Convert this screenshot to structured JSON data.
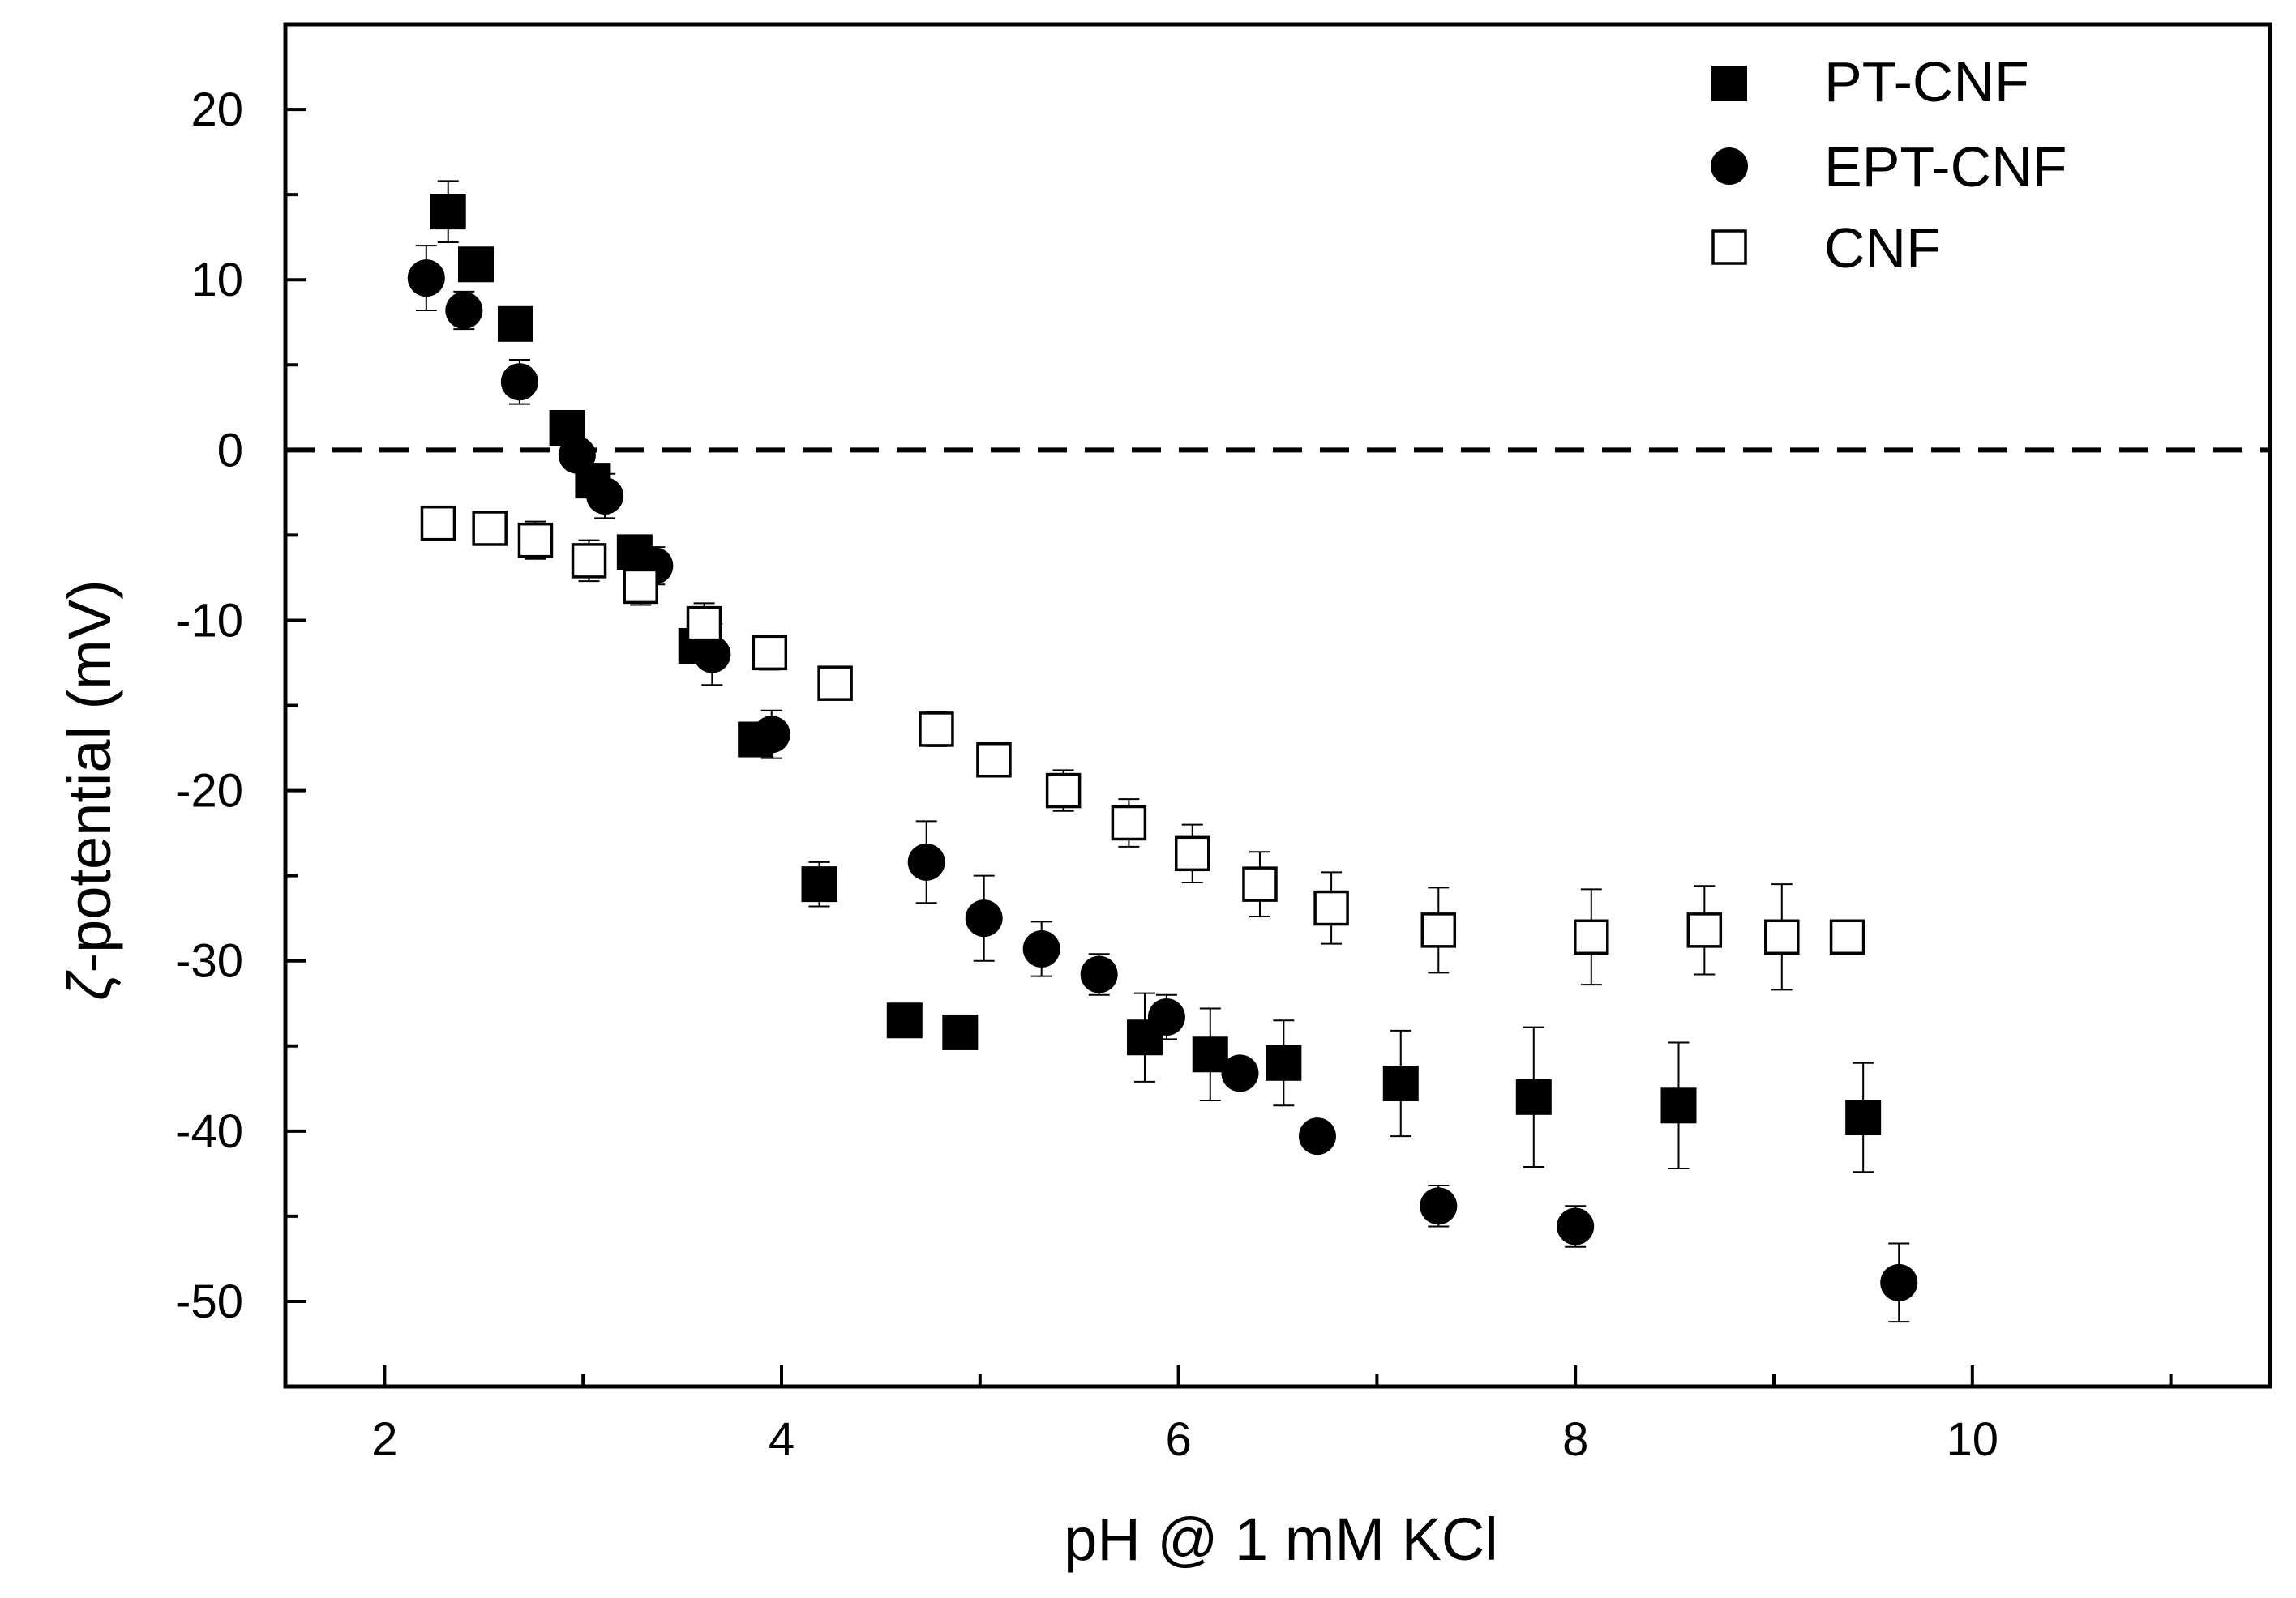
{
  "chart_data": {
    "type": "scatter",
    "title": "",
    "xlabel": "pH @ 1 mM KCl",
    "ylabel_symbol": "ζ",
    "ylabel": "-potential (mV)",
    "xlim": [
      1.5,
      11.5
    ],
    "ylim": [
      -55,
      25
    ],
    "xticks": [
      2,
      4,
      6,
      8,
      10
    ],
    "xtick_labels": [
      "2",
      "4",
      "6",
      "8",
      "10"
    ],
    "yticks": [
      20,
      10,
      0,
      -10,
      -20,
      -30,
      -40,
      -50
    ],
    "ytick_labels": [
      "20",
      "10",
      "0",
      "-10",
      "-20",
      "-30",
      "-40",
      "-50"
    ],
    "reference_line": {
      "y": 0,
      "style": "dashed"
    },
    "legend_position": "top-right",
    "series": [
      {
        "name": "PT-CNF",
        "marker": "filled-square",
        "points": [
          {
            "x": 2.32,
            "y": 14.0,
            "err": 1.8
          },
          {
            "x": 2.46,
            "y": 10.9,
            "err": 0.8
          },
          {
            "x": 2.66,
            "y": 7.4,
            "err": 0.8
          },
          {
            "x": 2.92,
            "y": 1.3,
            "err": 0.8
          },
          {
            "x": 3.05,
            "y": -1.8,
            "err": 0.8
          },
          {
            "x": 3.26,
            "y": -6.0,
            "err": 0.8
          },
          {
            "x": 3.57,
            "y": -11.5,
            "err": 1.0
          },
          {
            "x": 3.87,
            "y": -17.0,
            "err": 0.9
          },
          {
            "x": 4.19,
            "y": -25.5,
            "err": 1.3
          },
          {
            "x": 4.62,
            "y": -33.5,
            "err": 0.8
          },
          {
            "x": 4.9,
            "y": -34.2,
            "err": 0.8
          },
          {
            "x": 5.83,
            "y": -34.5,
            "err": 2.6
          },
          {
            "x": 6.16,
            "y": -35.5,
            "err": 2.7
          },
          {
            "x": 6.53,
            "y": -36.0,
            "err": 2.5
          },
          {
            "x": 7.12,
            "y": -37.2,
            "err": 3.1
          },
          {
            "x": 7.79,
            "y": -38.0,
            "err": 4.1
          },
          {
            "x": 8.52,
            "y": -38.5,
            "err": 3.7
          },
          {
            "x": 9.45,
            "y": -39.2,
            "err": 3.2
          }
        ]
      },
      {
        "name": "EPT-CNF",
        "marker": "filled-circle",
        "points": [
          {
            "x": 2.21,
            "y": 10.1,
            "err": 1.9
          },
          {
            "x": 2.4,
            "y": 8.2,
            "err": 1.1
          },
          {
            "x": 2.68,
            "y": 4.0,
            "err": 1.3
          },
          {
            "x": 2.97,
            "y": -0.3,
            "err": 0.9
          },
          {
            "x": 3.11,
            "y": -2.7,
            "err": 1.3
          },
          {
            "x": 3.36,
            "y": -6.8,
            "err": 1.1
          },
          {
            "x": 3.65,
            "y": -12.0,
            "err": 1.8
          },
          {
            "x": 3.95,
            "y": -16.7,
            "err": 1.4
          },
          {
            "x": 4.73,
            "y": -24.2,
            "err": 2.4
          },
          {
            "x": 5.02,
            "y": -27.5,
            "err": 2.5
          },
          {
            "x": 5.31,
            "y": -29.3,
            "err": 1.6
          },
          {
            "x": 5.6,
            "y": -30.8,
            "err": 1.2
          },
          {
            "x": 5.94,
            "y": -33.3,
            "err": 1.3
          },
          {
            "x": 6.31,
            "y": -36.6,
            "err": 0.8
          },
          {
            "x": 6.7,
            "y": -40.3,
            "err": 0.8
          },
          {
            "x": 7.31,
            "y": -44.4,
            "err": 1.2
          },
          {
            "x": 8.0,
            "y": -45.6,
            "err": 1.2
          },
          {
            "x": 9.63,
            "y": -48.9,
            "err": 2.3
          }
        ]
      },
      {
        "name": "CNF",
        "marker": "open-square",
        "points": [
          {
            "x": 2.27,
            "y": -4.3,
            "err": 0.9
          },
          {
            "x": 2.53,
            "y": -4.6,
            "err": 0.8
          },
          {
            "x": 2.76,
            "y": -5.3,
            "err": 1.1
          },
          {
            "x": 3.03,
            "y": -6.5,
            "err": 1.2
          },
          {
            "x": 3.29,
            "y": -8.0,
            "err": 1.1
          },
          {
            "x": 3.61,
            "y": -10.2,
            "err": 1.2
          },
          {
            "x": 3.94,
            "y": -11.9,
            "err": 1.0
          },
          {
            "x": 4.27,
            "y": -13.7,
            "err": 0.9
          },
          {
            "x": 4.78,
            "y": -16.4,
            "err": 1.0
          },
          {
            "x": 5.07,
            "y": -18.2,
            "err": 0.9
          },
          {
            "x": 5.42,
            "y": -20.0,
            "err": 1.2
          },
          {
            "x": 5.75,
            "y": -21.9,
            "err": 1.4
          },
          {
            "x": 6.07,
            "y": -23.7,
            "err": 1.7
          },
          {
            "x": 6.41,
            "y": -25.5,
            "err": 1.9
          },
          {
            "x": 6.77,
            "y": -26.9,
            "err": 2.1
          },
          {
            "x": 7.31,
            "y": -28.2,
            "err": 2.5
          },
          {
            "x": 8.08,
            "y": -28.6,
            "err": 2.8
          },
          {
            "x": 8.65,
            "y": -28.2,
            "err": 2.6
          },
          {
            "x": 9.04,
            "y": -28.6,
            "err": 3.1
          },
          {
            "x": 9.37,
            "y": -28.6,
            "err": 0.8
          }
        ]
      }
    ]
  }
}
